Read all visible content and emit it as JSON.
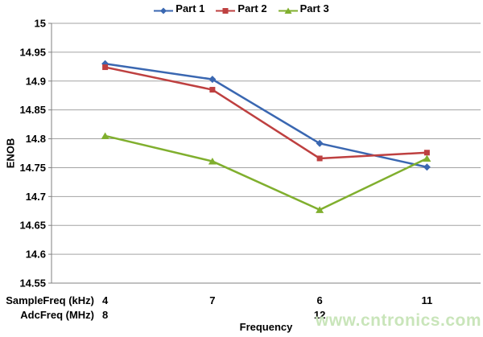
{
  "chart_data": {
    "type": "line",
    "title": "",
    "ylabel": "ENOB",
    "xlabel": "Frequency",
    "ylim": [
      14.55,
      15
    ],
    "ytick_step": 0.05,
    "grid": true,
    "legend_position": "top",
    "x_rows": [
      {
        "label": "SampleFreq (kHz)",
        "values": [
          "4",
          "7",
          "6",
          "11"
        ]
      },
      {
        "label": "AdcFreq (MHz)",
        "values": [
          "8",
          "",
          "12",
          ""
        ]
      }
    ],
    "series": [
      {
        "name": "Part 1",
        "color": "#3A67B1",
        "marker": "diamond",
        "values": [
          14.93,
          14.903,
          14.792,
          14.751
        ]
      },
      {
        "name": "Part 2",
        "color": "#BE4040",
        "marker": "square",
        "values": [
          14.924,
          14.885,
          14.766,
          14.776
        ]
      },
      {
        "name": "Part 3",
        "color": "#80AF2E",
        "marker": "triangle",
        "values": [
          14.805,
          14.761,
          14.677,
          14.766
        ]
      }
    ]
  },
  "watermark": {
    "text": "www.cntronics.com",
    "color": "#C9E5BA"
  },
  "colors": {
    "grid": "#A3A3A3",
    "axis": "#808080",
    "text": "#000000"
  }
}
